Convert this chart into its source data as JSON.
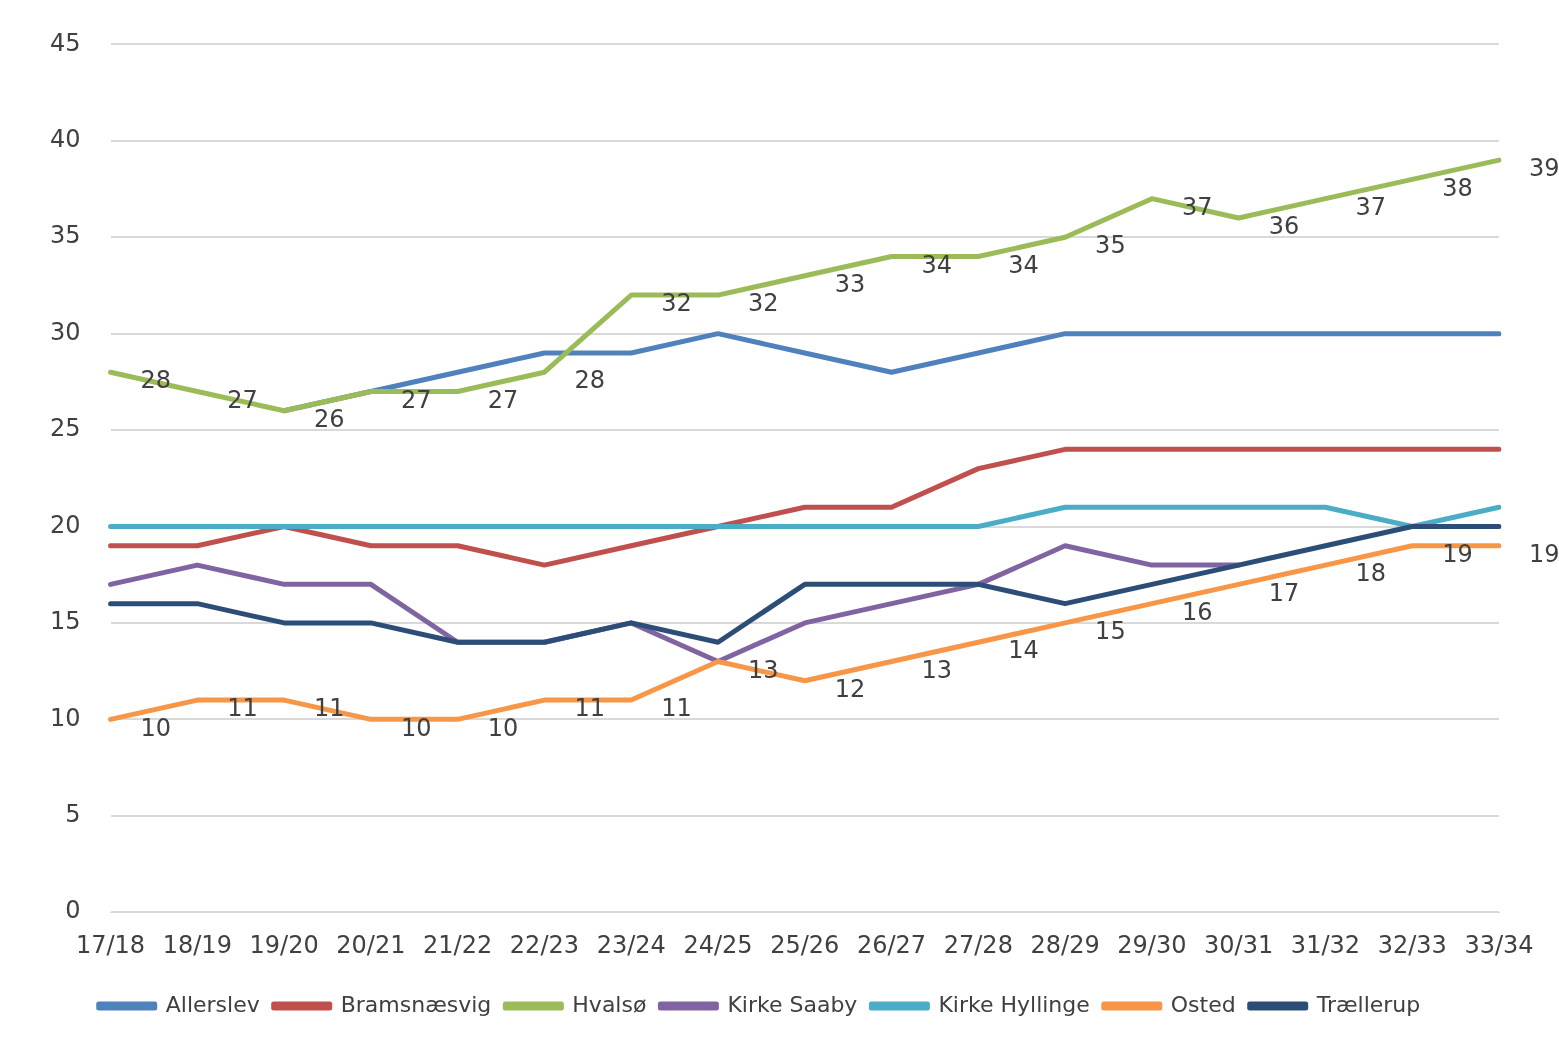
{
  "chart_data": {
    "type": "line",
    "categories": [
      "17/18",
      "18/19",
      "19/20",
      "20/21",
      "21/22",
      "22/23",
      "23/24",
      "24/25",
      "25/26",
      "26/27",
      "27/28",
      "28/29",
      "29/30",
      "30/31",
      "31/32",
      "32/33",
      "33/34"
    ],
    "series": [
      {
        "name": "Allerslev",
        "color": "#4f81bd",
        "values": [
          null,
          null,
          26,
          27,
          28,
          29,
          29,
          30,
          29,
          28,
          29,
          30,
          30,
          30,
          30,
          30,
          30
        ]
      },
      {
        "name": "Bramsnæsvig",
        "color": "#c0504d",
        "values": [
          19,
          19,
          20,
          19,
          19,
          18,
          19,
          20,
          21,
          21,
          23,
          24,
          24,
          24,
          24,
          24,
          24
        ]
      },
      {
        "name": "Hvalsø",
        "color": "#9bbb59",
        "values": [
          28,
          27,
          26,
          27,
          27,
          28,
          32,
          32,
          33,
          34,
          34,
          35,
          37,
          36,
          37,
          38,
          39
        ],
        "value_labels": [
          "28",
          "27",
          "26",
          "27",
          "27",
          "28",
          "32",
          "32",
          "33",
          "34",
          "34",
          "35",
          "37",
          "36",
          "37",
          "38",
          "39"
        ]
      },
      {
        "name": "Kirke Saaby",
        "color": "#8064a2",
        "values": [
          17,
          18,
          17,
          17,
          14,
          14,
          15,
          13,
          15,
          16,
          17,
          19,
          18,
          18,
          null,
          null,
          null
        ]
      },
      {
        "name": "Kirke Hyllinge",
        "color": "#4bacc6",
        "values": [
          20,
          20,
          20,
          20,
          20,
          20,
          20,
          20,
          20,
          20,
          20,
          21,
          21,
          21,
          21,
          20,
          21
        ]
      },
      {
        "name": "Osted",
        "color": "#f79646",
        "values": [
          10,
          11,
          11,
          10,
          10,
          11,
          11,
          13,
          12,
          13,
          14,
          15,
          16,
          17,
          18,
          19,
          19
        ],
        "value_labels": [
          "10",
          "11",
          "11",
          "10",
          "10",
          "11",
          "11",
          "13",
          "12",
          "13",
          "14",
          "15",
          "16",
          "17",
          "18",
          "19",
          "19"
        ]
      },
      {
        "name": "Trællerup",
        "color": "#2c4d75",
        "values": [
          16,
          16,
          15,
          15,
          14,
          14,
          15,
          14,
          17,
          17,
          17,
          16,
          17,
          18,
          19,
          20,
          20
        ]
      }
    ],
    "ylim": [
      0,
      45
    ],
    "yticks": [
      0,
      5,
      10,
      15,
      20,
      25,
      30,
      35,
      40,
      45
    ],
    "grid": "y",
    "legend": "bottom",
    "marker": "none",
    "line_style": "solid"
  }
}
